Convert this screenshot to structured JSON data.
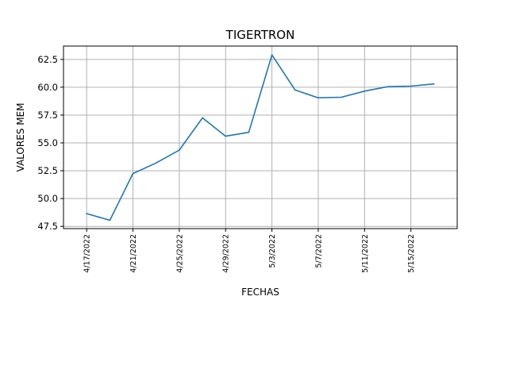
{
  "chart_data": {
    "type": "line",
    "title": "TIGERTRON",
    "xlabel": "FECHAS",
    "ylabel": "VALORES MEM",
    "grid": true,
    "x_ticks": [
      "4/17/2022",
      "4/21/2022",
      "4/25/2022",
      "4/29/2022",
      "5/3/2022",
      "5/7/2022",
      "5/11/2022",
      "5/15/2022"
    ],
    "y_ticks": [
      "47.5",
      "50.0",
      "52.5",
      "55.0",
      "57.5",
      "60.0",
      "62.5"
    ],
    "ylim": [
      47.3,
      63.7
    ],
    "xlim": [
      "4/15/2022",
      "5/19/2022"
    ],
    "line_color": "#1f77b4",
    "series": [
      {
        "x": [
          "4/17/2022",
          "4/19/2022",
          "4/21/2022",
          "4/23/2022",
          "4/25/2022",
          "4/27/2022",
          "4/29/2022",
          "5/1/2022",
          "5/3/2022",
          "5/5/2022",
          "5/7/2022",
          "5/9/2022",
          "5/11/2022",
          "5/13/2022",
          "5/15/2022",
          "5/17/2022"
        ],
        "values": [
          48.65,
          48.05,
          52.25,
          53.2,
          54.35,
          57.25,
          55.6,
          55.95,
          62.9,
          59.75,
          59.05,
          59.1,
          59.65,
          60.05,
          60.1,
          60.3
        ]
      }
    ]
  }
}
